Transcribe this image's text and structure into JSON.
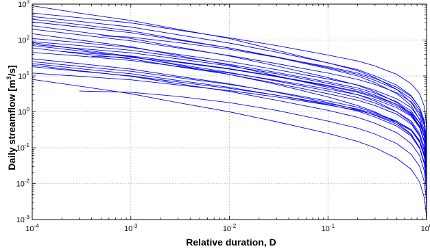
{
  "chart_data": {
    "type": "line",
    "title": "",
    "xlabel": "Relative duration, D",
    "ylabel": "Daily streamflow [m",
    "ylabel_sup": "3",
    "ylabel_suffix": "/s]",
    "xscale": "log",
    "yscale": "log",
    "xlim": [
      0.0001,
      1
    ],
    "ylim": [
      0.001,
      1000
    ],
    "grid": true,
    "legend": "none",
    "line_color": "#0000ff",
    "x_ticks": [
      {
        "base": "10",
        "exp": "-4",
        "value": 0.0001
      },
      {
        "base": "10",
        "exp": "-3",
        "value": 0.001
      },
      {
        "base": "10",
        "exp": "-2",
        "value": 0.01
      },
      {
        "base": "10",
        "exp": "-1",
        "value": 0.1
      },
      {
        "base": "10",
        "exp": "0",
        "value": 1
      }
    ],
    "y_ticks": [
      {
        "base": "10",
        "exp": "-3",
        "value": 0.001
      },
      {
        "base": "10",
        "exp": "-2",
        "value": 0.01
      },
      {
        "base": "10",
        "exp": "-1",
        "value": 0.1
      },
      {
        "base": "10",
        "exp": "0",
        "value": 1
      },
      {
        "base": "10",
        "exp": "1",
        "value": 10
      },
      {
        "base": "10",
        "exp": "2",
        "value": 100
      },
      {
        "base": "10",
        "exp": "3",
        "value": 1000
      }
    ],
    "x": [
      0.0001,
      0.0003,
      0.001,
      0.003,
      0.01,
      0.03,
      0.1,
      0.2,
      0.3,
      0.5,
      0.7,
      0.85,
      0.95,
      0.99,
      1
    ],
    "series": [
      {
        "x_start": 0.0001,
        "values": [
          900,
          560,
          350,
          200,
          110,
          52,
          23,
          14,
          9,
          4.2,
          1.8,
          0.8,
          0.3,
          0.08,
          0.012
        ]
      },
      {
        "x_start": 0.0001,
        "values": [
          560,
          420,
          300,
          190,
          115,
          70,
          38,
          26,
          19,
          11,
          6,
          3.2,
          1.4,
          0.5,
          0.06
        ]
      },
      {
        "x_start": 0.0001,
        "values": [
          450,
          330,
          230,
          140,
          82,
          46,
          23,
          15,
          10,
          5.5,
          2.8,
          1.3,
          0.5,
          0.15,
          0.02
        ]
      },
      {
        "x_start": 0.0001,
        "values": [
          380,
          270,
          180,
          105,
          60,
          33,
          16,
          10,
          6.5,
          3.2,
          1.5,
          0.6,
          0.2,
          0.06,
          0.01
        ]
      },
      {
        "x_start": 0.0001,
        "values": [
          320,
          230,
          160,
          100,
          60,
          34,
          17,
          11,
          7.5,
          4.2,
          2.3,
          1.1,
          0.45,
          0.12,
          0.02
        ]
      },
      {
        "x_start": 0.0001,
        "values": [
          250,
          170,
          110,
          64,
          36,
          19,
          9,
          5.5,
          3.6,
          1.8,
          0.9,
          0.4,
          0.14,
          0.04,
          0.008
        ]
      },
      {
        "x_start": 0.0001,
        "values": [
          200,
          140,
          95,
          60,
          37,
          22,
          12,
          8,
          5.8,
          3.4,
          1.9,
          0.95,
          0.4,
          0.12,
          0.03
        ]
      },
      {
        "x_start": 0.0001,
        "values": [
          150,
          100,
          65,
          37,
          20,
          10,
          4.8,
          3,
          2,
          1,
          0.5,
          0.22,
          0.08,
          0.025,
          0.006
        ]
      },
      {
        "x_start": 0.0001,
        "values": [
          90,
          70,
          52,
          34,
          21,
          12.5,
          6.8,
          4.6,
          3.3,
          1.9,
          1.05,
          0.5,
          0.2,
          0.07,
          0.02
        ]
      },
      {
        "x_start": 0.0001,
        "values": [
          85,
          55,
          35,
          20,
          11,
          5.8,
          2.6,
          1.5,
          1,
          0.5,
          0.24,
          0.1,
          0.035,
          0.012,
          0.004
        ]
      },
      {
        "x_start": 0.0001,
        "values": [
          75,
          58,
          44,
          30,
          19,
          11.5,
          6.2,
          4.1,
          2.9,
          1.6,
          0.85,
          0.4,
          0.15,
          0.05,
          0.015
        ]
      },
      {
        "x_start": 0.0001,
        "values": [
          60,
          42,
          30,
          18,
          11,
          6.2,
          3.2,
          2.1,
          1.5,
          0.85,
          0.46,
          0.21,
          0.08,
          0.03,
          0.008
        ]
      },
      {
        "x_start": 0.0001,
        "values": [
          45,
          36,
          27,
          18.5,
          12,
          7.6,
          4.3,
          3,
          2.2,
          1.3,
          0.75,
          0.36,
          0.14,
          0.05,
          0.015
        ]
      },
      {
        "x_start": 0.0001,
        "values": [
          30,
          22,
          15.5,
          9.8,
          6,
          3.5,
          1.8,
          1.15,
          0.8,
          0.45,
          0.23,
          0.1,
          0.038,
          0.014,
          0.004
        ]
      },
      {
        "x_start": 0.0001,
        "values": [
          25,
          18.5,
          13.5,
          9,
          5.8,
          3.6,
          2,
          1.35,
          0.95,
          0.55,
          0.3,
          0.14,
          0.055,
          0.02,
          0.006
        ]
      },
      {
        "x_start": 0.0001,
        "values": [
          22,
          16,
          11.5,
          7.5,
          4.8,
          2.9,
          1.6,
          1.05,
          0.72,
          0.4,
          0.21,
          0.095,
          0.035,
          0.012,
          0.004
        ]
      },
      {
        "x_start": 0.0001,
        "values": [
          20,
          14,
          9.8,
          6.1,
          3.7,
          2.1,
          1.1,
          0.7,
          0.48,
          0.26,
          0.13,
          0.06,
          0.022,
          0.008,
          0.003
        ]
      },
      {
        "x_start": 0.0001,
        "values": [
          8,
          5.2,
          3.2,
          1.8,
          1,
          0.53,
          0.25,
          0.15,
          0.1,
          0.05,
          0.025,
          0.011,
          0.004,
          0.0015,
          0.0007
        ]
      },
      {
        "x_start": 0.0003,
        "values": [
          3.8,
          3.8,
          3.5,
          2.7,
          1.8,
          1.1,
          0.55,
          0.35,
          0.24,
          0.13,
          0.065,
          0.03,
          0.011,
          0.004,
          0.0015
        ]
      },
      {
        "x_start": 0.0005,
        "values": [
          130,
          130,
          120,
          85,
          55,
          33,
          18,
          12,
          8.5,
          4.8,
          2.7,
          1.3,
          0.55,
          0.2,
          0.05
        ]
      },
      {
        "x_start": 0.0004,
        "values": [
          35,
          35,
          33,
          24,
          15.5,
          9.5,
          5.2,
          3.5,
          2.5,
          1.45,
          0.8,
          0.38,
          0.15,
          0.05,
          0.014
        ]
      },
      {
        "x_start": 0.0002,
        "values": [
          48,
          44,
          36,
          25,
          16,
          9.8,
          5.4,
          3.7,
          2.7,
          1.6,
          0.95,
          0.48,
          0.2,
          0.075,
          0.025
        ]
      },
      {
        "x_start": 0.0001,
        "values": [
          110,
          85,
          62,
          40,
          25,
          15,
          8.2,
          5.6,
          4,
          2.3,
          1.3,
          0.62,
          0.25,
          0.09,
          0.025
        ]
      },
      {
        "x_start": 0.0001,
        "values": [
          70,
          50,
          34,
          21,
          12.5,
          7.2,
          3.8,
          2.5,
          1.75,
          1,
          0.55,
          0.25,
          0.1,
          0.035,
          0.01
        ]
      },
      {
        "x_start": 0.0001,
        "values": [
          18,
          13.5,
          10,
          6.8,
          4.5,
          2.9,
          1.7,
          1.2,
          0.88,
          0.54,
          0.32,
          0.16,
          0.065,
          0.024,
          0.008
        ]
      },
      {
        "x_start": 0.0001,
        "values": [
          12,
          9.8,
          7.8,
          5.6,
          3.9,
          2.6,
          1.55,
          1.1,
          0.82,
          0.5,
          0.3,
          0.15,
          0.06,
          0.022,
          0.007
        ]
      }
    ]
  }
}
